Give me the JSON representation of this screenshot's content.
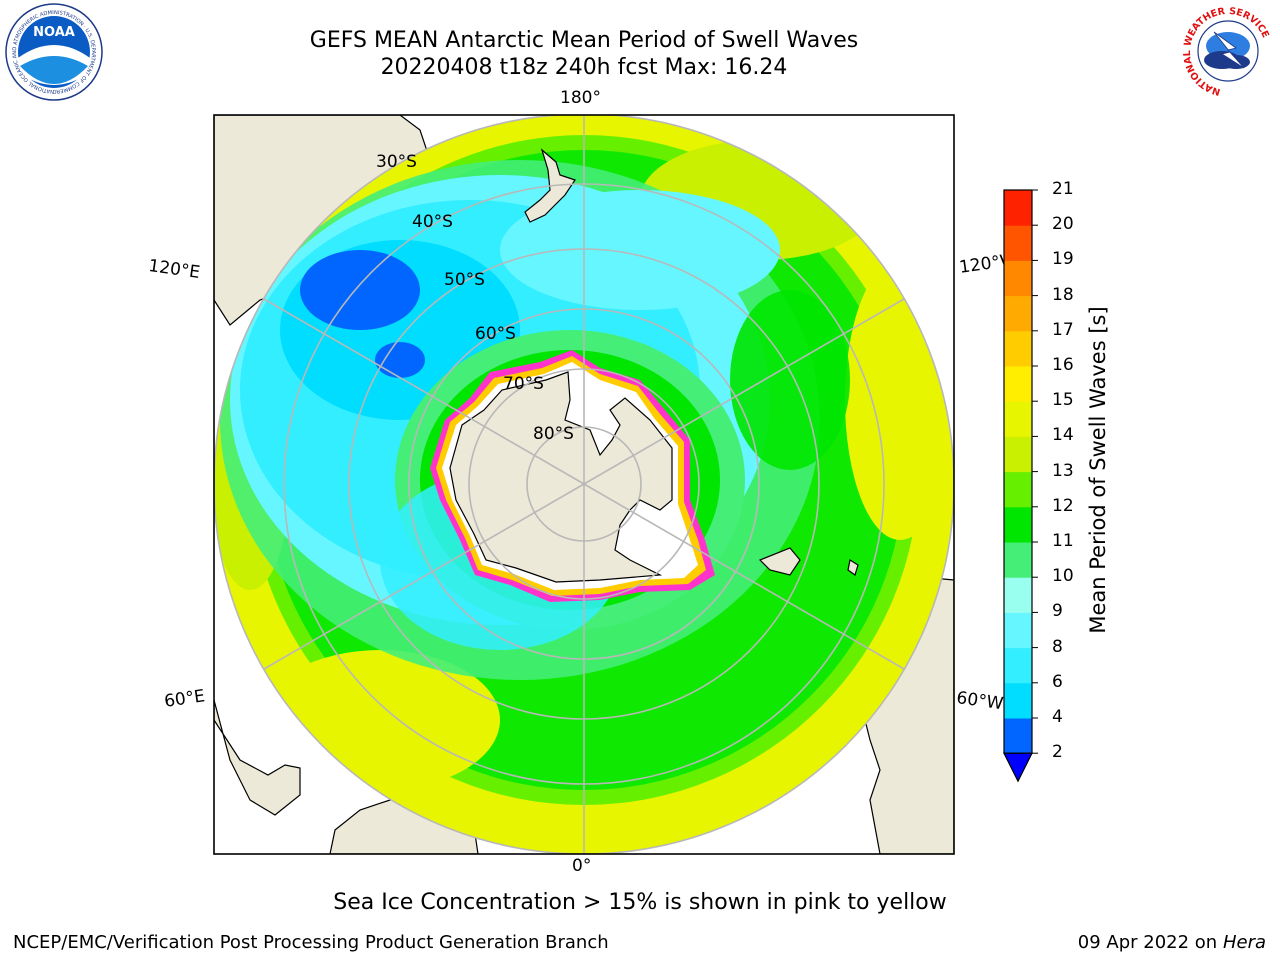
{
  "header": {
    "title_line1": "GEFS MEAN Antarctic Mean Period of Swell Waves",
    "title_line2": "20220408 t18z 240h fcst   Max: 16.24"
  },
  "logos": {
    "left": "NOAA",
    "left_ring_text": "NATIONAL OCEANIC AND ATMOSPHERIC ADMINISTRATION · U.S. DEPARTMENT OF COMMERCE",
    "right_ring_text": "NATIONAL WEATHER SERVICE"
  },
  "map": {
    "projection": "south polar stereographic",
    "longitude_labels": {
      "top": "180°",
      "bottom": "0°",
      "upper_left": "120°E",
      "upper_right": "120°W",
      "lower_left": "60°E",
      "lower_right": "60°W"
    },
    "latitude_labels": [
      "30°S",
      "40°S",
      "50°S",
      "60°S",
      "70°S",
      "80°S"
    ]
  },
  "colorbar": {
    "label": "Mean Period of Swell Waves [s]",
    "ticks": [
      "2",
      "4",
      "6",
      "8",
      "9",
      "10",
      "11",
      "12",
      "13",
      "14",
      "15",
      "16",
      "17",
      "18",
      "19",
      "20",
      "21"
    ],
    "colors": [
      "#0066ff",
      "#00ddff",
      "#33eeff",
      "#66f6ff",
      "#99ffee",
      "#44ee77",
      "#00e600",
      "#66f000",
      "#c8f000",
      "#e8f500",
      "#ffee00",
      "#ffcc00",
      "#ffaa00",
      "#ff8800",
      "#ff5500",
      "#ff2200"
    ],
    "under_color": "#0000ff"
  },
  "footer": {
    "note": "Sea Ice Concentration > 15% is shown in pink to yellow",
    "credit": "NCEP/EMC/Verification Post Processing Product Generation Branch",
    "date": "09 Apr 2022 on",
    "host": "Hera"
  }
}
